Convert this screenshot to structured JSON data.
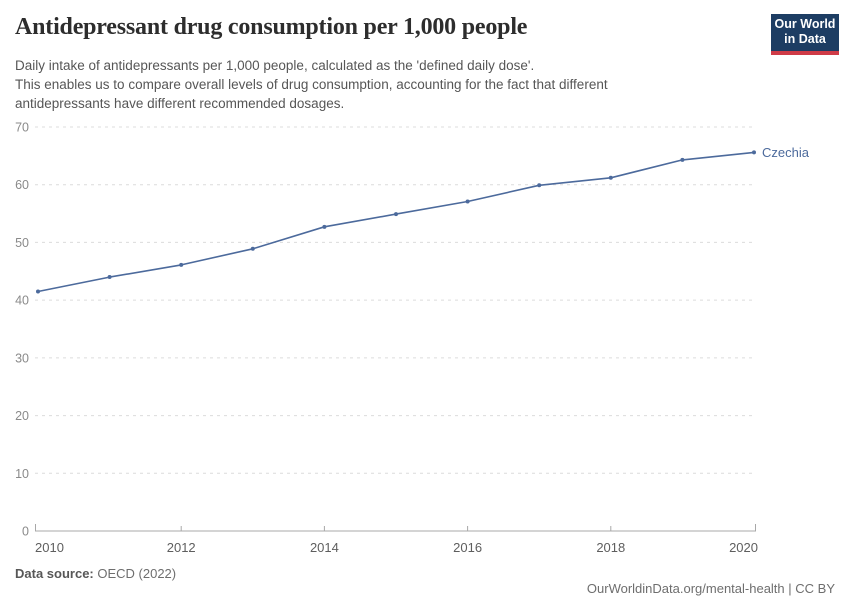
{
  "header": {
    "title": "Antidepressant drug consumption per 1,000 people",
    "subtitle_lines": [
      "Daily intake of antidepressants per 1,000 people, calculated as the 'defined daily dose'.",
      "This enables us to compare overall levels of drug consumption, accounting for the fact that different",
      "antidepressants have different recommended dosages."
    ],
    "logo": {
      "line1": "Our World",
      "line2": "in Data",
      "bg_color": "#1d3d63",
      "accent_color": "#cf3b47"
    }
  },
  "chart_data": {
    "type": "line",
    "title": "Antidepressant drug consumption per 1,000 people",
    "x": [
      2010,
      2011,
      2012,
      2013,
      2014,
      2015,
      2016,
      2017,
      2018,
      2019,
      2020
    ],
    "series": [
      {
        "name": "Czechia",
        "values": [
          41.5,
          44.0,
          46.1,
          48.9,
          52.7,
          54.9,
          57.1,
          59.9,
          61.2,
          64.3,
          65.6
        ],
        "color": "#4c6a9c"
      }
    ],
    "xlabel": "",
    "ylabel": "",
    "ylim": [
      0,
      70
    ],
    "yticks": [
      0,
      10,
      20,
      30,
      40,
      50,
      60,
      70
    ],
    "xticks": [
      2010,
      2012,
      2014,
      2016,
      2018,
      2020
    ],
    "grid": "horizontal-dashed",
    "legend_position": "end-of-line-label",
    "colors": {
      "gridline": "#dcdcdc",
      "axis": "#a8a8a8",
      "y_tick_label": "#8a8a8a",
      "x_tick_label": "#5e5e5e"
    }
  },
  "footer": {
    "data_source_label": "Data source:",
    "data_source_value": " OECD (2022)",
    "link": "OurWorldinData.org/mental-health",
    "separator": " | ",
    "license": "CC BY"
  }
}
